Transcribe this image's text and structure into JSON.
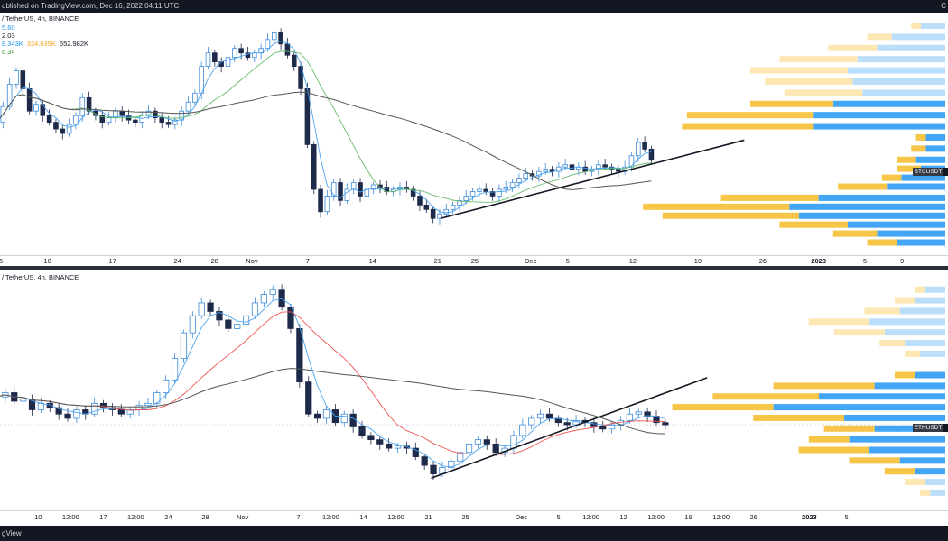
{
  "header": {
    "published": "ublished on TradingView.com, Dec 16, 2022 04:11 UTC",
    "right_mark": "C"
  },
  "footer": {
    "brand": "gView"
  },
  "colors": {
    "up": "#3d8bd8",
    "down": "#1e2a4a",
    "ma_blue": "#4aa3f0",
    "ma_green": "#66bb6a",
    "ma_red": "#ef5350",
    "ma_gray": "#555555",
    "vp_yellow": "#f7c548",
    "vp_yellow_light": "#fde7b3",
    "vp_blue": "#42a5f5",
    "vp_blue_light": "#bbdefb",
    "trendline": "#131722"
  },
  "panes": [
    {
      "id": "btc",
      "symbol_line": "/ TetherUS, 4h, BINANCE",
      "legend": [
        "5.60",
        "2.03"
      ],
      "volume_line": [
        "8.343K",
        "324.639K",
        "652.982K"
      ],
      "legend_last": "6.34",
      "price_tag": "BTCUSDT",
      "time_labels": [
        {
          "t": 0.5,
          "label": "5"
        },
        {
          "t": 5.5,
          "label": "10"
        },
        {
          "t": 12.5,
          "label": "17"
        },
        {
          "t": 19.5,
          "label": "24"
        },
        {
          "t": 23.5,
          "label": "28"
        },
        {
          "t": 27.5,
          "label": "Nov"
        },
        {
          "t": 33.5,
          "label": "7"
        },
        {
          "t": 40.5,
          "label": "14"
        },
        {
          "t": 47.5,
          "label": "21"
        },
        {
          "t": 51.5,
          "label": "25"
        },
        {
          "t": 57.5,
          "label": "Dec"
        },
        {
          "t": 61.5,
          "label": "5"
        },
        {
          "t": 68.5,
          "label": "12"
        },
        {
          "t": 75.5,
          "label": "19"
        },
        {
          "t": 82.5,
          "label": "26"
        },
        {
          "t": 88.5,
          "label": "2023",
          "bold": true
        },
        {
          "t": 93.5,
          "label": "5"
        },
        {
          "t": 97.5,
          "label": "9"
        }
      ]
    },
    {
      "id": "eth",
      "symbol_line": "/ TetherUS, 4h, BINANCE",
      "price_tag": "ETHUSDT",
      "time_labels": [
        {
          "t": 4.5,
          "label": "10"
        },
        {
          "t": 8.0,
          "label": "12:00"
        },
        {
          "t": 11.5,
          "label": "17"
        },
        {
          "t": 15.0,
          "label": "12:00"
        },
        {
          "t": 18.5,
          "label": "24"
        },
        {
          "t": 22.5,
          "label": "28"
        },
        {
          "t": 26.5,
          "label": "Nov"
        },
        {
          "t": 32.5,
          "label": "7"
        },
        {
          "t": 36.0,
          "label": "12:00"
        },
        {
          "t": 39.5,
          "label": "14"
        },
        {
          "t": 43.0,
          "label": "12:00"
        },
        {
          "t": 46.5,
          "label": "21"
        },
        {
          "t": 50.5,
          "label": "25"
        },
        {
          "t": 56.5,
          "label": "Dec"
        },
        {
          "t": 60.5,
          "label": "5"
        },
        {
          "t": 64.0,
          "label": "12:00"
        },
        {
          "t": 67.5,
          "label": "12"
        },
        {
          "t": 71.0,
          "label": "12:00"
        },
        {
          "t": 74.5,
          "label": "19"
        },
        {
          "t": 78.0,
          "label": "12:00"
        },
        {
          "t": 81.5,
          "label": "26"
        },
        {
          "t": 87.5,
          "label": "2023",
          "bold": true
        },
        {
          "t": 91.5,
          "label": "5"
        }
      ]
    }
  ],
  "chart_data": [
    {
      "type": "candlestick",
      "name": "BTCUSDT 4h",
      "time_index": "day-index (0 = Oct 5)",
      "last_day_index": 70.5,
      "closes": [
        0.55,
        0.62,
        0.72,
        0.78,
        0.7,
        0.6,
        0.63,
        0.58,
        0.55,
        0.52,
        0.5,
        0.54,
        0.58,
        0.66,
        0.6,
        0.58,
        0.55,
        0.57,
        0.6,
        0.58,
        0.56,
        0.55,
        0.58,
        0.6,
        0.57,
        0.55,
        0.54,
        0.56,
        0.6,
        0.64,
        0.68,
        0.8,
        0.86,
        0.82,
        0.8,
        0.84,
        0.88,
        0.86,
        0.84,
        0.86,
        0.88,
        0.92,
        0.95,
        0.9,
        0.85,
        0.8,
        0.7,
        0.45,
        0.25,
        0.15,
        0.22,
        0.28,
        0.2,
        0.25,
        0.28,
        0.22,
        0.25,
        0.27,
        0.26,
        0.24,
        0.25,
        0.26,
        0.25,
        0.22,
        0.18,
        0.16,
        0.12,
        0.14,
        0.16,
        0.18,
        0.2,
        0.22,
        0.24,
        0.25,
        0.24,
        0.22,
        0.25,
        0.26,
        0.28,
        0.3,
        0.32,
        0.31,
        0.33,
        0.34,
        0.33,
        0.35,
        0.36,
        0.34,
        0.35,
        0.33,
        0.34,
        0.36,
        0.35,
        0.34,
        0.33,
        0.35,
        0.4,
        0.46,
        0.43,
        0.38
      ],
      "moving_averages": [
        {
          "color": "ma_blue",
          "period": 4
        },
        {
          "color": "ma_green",
          "period": 12
        },
        {
          "color": "ma_gray",
          "period": 40
        }
      ],
      "trendline": [
        [
          47.8,
          0.12
        ],
        [
          80.5,
          0.47
        ]
      ],
      "volume_profile": {
        "rows": [
          {
            "price": 0.98,
            "buy": 0.05,
            "sell": 0.02,
            "light": true
          },
          {
            "price": 0.93,
            "buy": 0.11,
            "sell": 0.05,
            "light": true
          },
          {
            "price": 0.88,
            "buy": 0.14,
            "sell": 0.1,
            "light": true
          },
          {
            "price": 0.83,
            "buy": 0.18,
            "sell": 0.16,
            "light": true
          },
          {
            "price": 0.78,
            "buy": 0.2,
            "sell": 0.2,
            "light": true
          },
          {
            "price": 0.73,
            "buy": 0.19,
            "sell": 0.18,
            "light": true
          },
          {
            "price": 0.68,
            "buy": 0.17,
            "sell": 0.16,
            "light": true
          },
          {
            "price": 0.63,
            "buy": 0.23,
            "sell": 0.17,
            "light": false
          },
          {
            "price": 0.58,
            "buy": 0.27,
            "sell": 0.26,
            "light": false
          },
          {
            "price": 0.53,
            "buy": 0.27,
            "sell": 0.27,
            "light": false
          },
          {
            "price": 0.48,
            "buy": 0.04,
            "sell": 0.02,
            "light": false
          },
          {
            "price": 0.43,
            "buy": 0.04,
            "sell": 0.03,
            "light": false
          },
          {
            "price": 0.38,
            "buy": 0.06,
            "sell": 0.04,
            "light": false
          },
          {
            "price": 0.34,
            "buy": 0.05,
            "sell": 0.05,
            "light": false
          },
          {
            "price": 0.3,
            "buy": 0.09,
            "sell": 0.04,
            "light": false
          },
          {
            "price": 0.26,
            "buy": 0.12,
            "sell": 0.1,
            "light": false
          },
          {
            "price": 0.21,
            "buy": 0.26,
            "sell": 0.2,
            "light": false
          },
          {
            "price": 0.17,
            "buy": 0.32,
            "sell": 0.3,
            "light": false
          },
          {
            "price": 0.13,
            "buy": 0.3,
            "sell": 0.28,
            "light": false
          },
          {
            "price": 0.09,
            "buy": 0.2,
            "sell": 0.14,
            "light": false
          },
          {
            "price": 0.05,
            "buy": 0.14,
            "sell": 0.09,
            "light": false
          },
          {
            "price": 0.01,
            "buy": 0.1,
            "sell": 0.06,
            "light": false
          }
        ]
      }
    },
    {
      "type": "candlestick",
      "name": "ETHUSDT 4h",
      "time_index": "day-index (0 = Oct 6)",
      "last_day_index": 72.0,
      "closes": [
        0.48,
        0.5,
        0.46,
        0.47,
        0.42,
        0.45,
        0.43,
        0.4,
        0.38,
        0.42,
        0.4,
        0.45,
        0.43,
        0.42,
        0.4,
        0.42,
        0.44,
        0.45,
        0.5,
        0.56,
        0.66,
        0.78,
        0.86,
        0.92,
        0.88,
        0.84,
        0.8,
        0.82,
        0.86,
        0.92,
        0.96,
        0.98,
        0.9,
        0.8,
        0.55,
        0.4,
        0.38,
        0.42,
        0.36,
        0.4,
        0.34,
        0.3,
        0.28,
        0.26,
        0.24,
        0.25,
        0.24,
        0.2,
        0.16,
        0.12,
        0.15,
        0.18,
        0.22,
        0.26,
        0.28,
        0.26,
        0.22,
        0.24,
        0.3,
        0.35,
        0.38,
        0.4,
        0.38,
        0.36,
        0.35,
        0.37,
        0.36,
        0.34,
        0.33,
        0.35,
        0.37,
        0.4,
        0.41,
        0.39,
        0.36,
        0.35
      ],
      "moving_averages": [
        {
          "color": "ma_blue",
          "period": 4
        },
        {
          "color": "ma_red",
          "period": 12
        },
        {
          "color": "ma_gray",
          "period": 40
        }
      ],
      "trendline": [
        [
          46.8,
          0.1
        ],
        [
          76.5,
          0.57
        ]
      ],
      "volume_profile": {
        "rows": [
          {
            "price": 0.98,
            "buy": 0.04,
            "sell": 0.02,
            "light": true
          },
          {
            "price": 0.93,
            "buy": 0.06,
            "sell": 0.04,
            "light": true
          },
          {
            "price": 0.88,
            "buy": 0.09,
            "sell": 0.07,
            "light": true
          },
          {
            "price": 0.83,
            "buy": 0.15,
            "sell": 0.12,
            "light": true
          },
          {
            "price": 0.78,
            "buy": 0.12,
            "sell": 0.1,
            "light": true
          },
          {
            "price": 0.73,
            "buy": 0.08,
            "sell": 0.05,
            "light": true
          },
          {
            "price": 0.68,
            "buy": 0.05,
            "sell": 0.03,
            "light": true
          },
          {
            "price": 0.58,
            "buy": 0.06,
            "sell": 0.04,
            "light": false
          },
          {
            "price": 0.53,
            "buy": 0.14,
            "sell": 0.2,
            "light": false
          },
          {
            "price": 0.48,
            "buy": 0.25,
            "sell": 0.21,
            "light": false
          },
          {
            "price": 0.43,
            "buy": 0.34,
            "sell": 0.2,
            "light": false
          },
          {
            "price": 0.38,
            "buy": 0.2,
            "sell": 0.18,
            "light": false
          },
          {
            "price": 0.33,
            "buy": 0.14,
            "sell": 0.1,
            "light": false
          },
          {
            "price": 0.28,
            "buy": 0.19,
            "sell": 0.08,
            "light": false
          },
          {
            "price": 0.23,
            "buy": 0.15,
            "sell": 0.14,
            "light": false
          },
          {
            "price": 0.18,
            "buy": 0.09,
            "sell": 0.1,
            "light": false
          },
          {
            "price": 0.13,
            "buy": 0.06,
            "sell": 0.06,
            "light": false
          },
          {
            "price": 0.08,
            "buy": 0.04,
            "sell": 0.04,
            "light": true
          },
          {
            "price": 0.03,
            "buy": 0.03,
            "sell": 0.02,
            "light": true
          }
        ]
      }
    }
  ]
}
